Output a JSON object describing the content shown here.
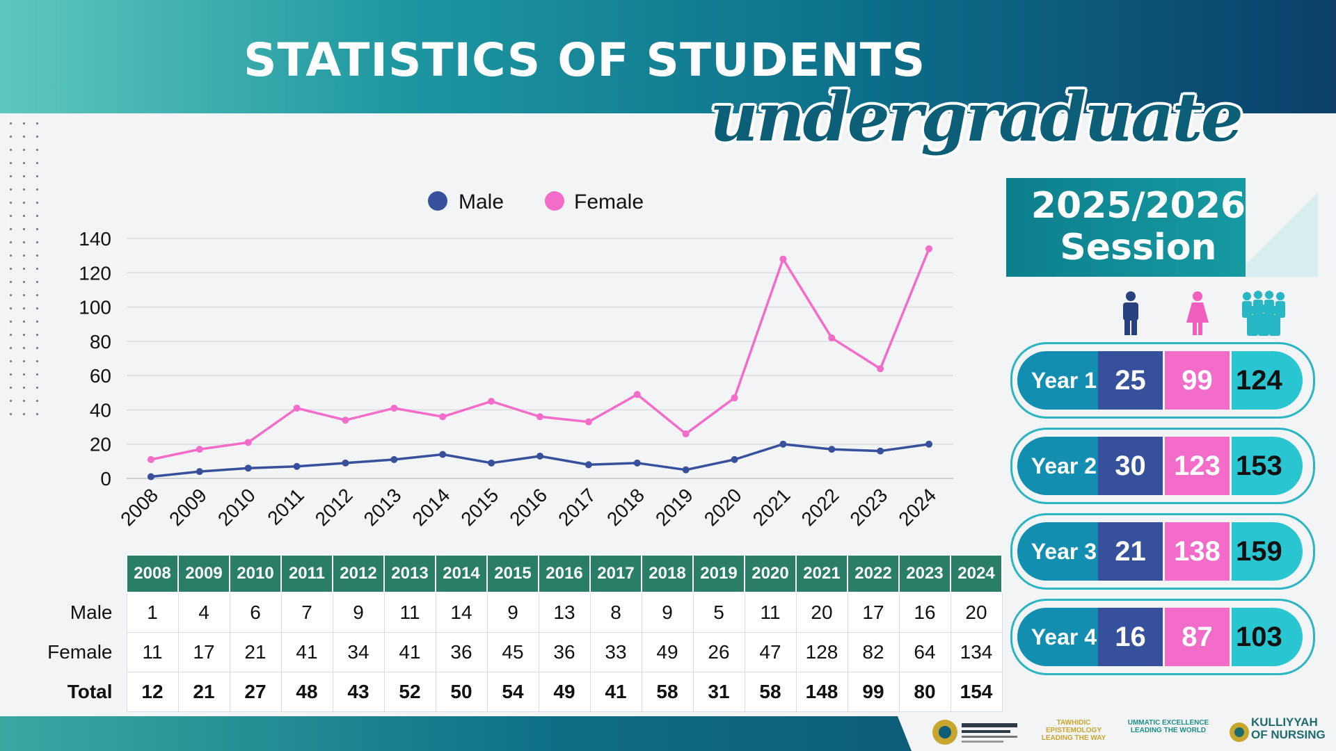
{
  "header": {
    "title": "STATISTICS OF STUDENTS",
    "subtitle": "undergraduate"
  },
  "colors": {
    "male": "#36509c",
    "female": "#f36cc9",
    "total": "#29c5d1",
    "table_header": "#2a7e68",
    "header_band": "#0c6f8a"
  },
  "chart_data": {
    "type": "line",
    "x": [
      "2008",
      "2009",
      "2010",
      "2011",
      "2012",
      "2013",
      "2014",
      "2015",
      "2016",
      "2017",
      "2018",
      "2019",
      "2020",
      "2021",
      "2022",
      "2023",
      "2024"
    ],
    "series": [
      {
        "name": "Male",
        "values": [
          1,
          4,
          6,
          7,
          9,
          11,
          14,
          9,
          13,
          8,
          9,
          5,
          11,
          20,
          17,
          16,
          20
        ]
      },
      {
        "name": "Female",
        "values": [
          11,
          17,
          21,
          41,
          34,
          41,
          36,
          45,
          36,
          33,
          49,
          26,
          47,
          128,
          82,
          64,
          134
        ]
      }
    ],
    "ylim": [
      0,
      140
    ],
    "yticks": [
      0,
      20,
      40,
      60,
      80,
      100,
      120,
      140
    ],
    "grid": true,
    "legend": "top-center"
  },
  "table": {
    "years": [
      "2008",
      "2009",
      "2010",
      "2011",
      "2012",
      "2013",
      "2014",
      "2015",
      "2016",
      "2017",
      "2018",
      "2019",
      "2020",
      "2021",
      "2022",
      "2023",
      "2024"
    ],
    "rows": [
      {
        "label": "Male",
        "values": [
          "1",
          "4",
          "6",
          "7",
          "9",
          "11",
          "14",
          "9",
          "13",
          "8",
          "9",
          "5",
          "11",
          "20",
          "17",
          "16",
          "20"
        ]
      },
      {
        "label": "Female",
        "values": [
          "11",
          "17",
          "21",
          "41",
          "34",
          "41",
          "36",
          "45",
          "36",
          "33",
          "49",
          "26",
          "47",
          "128",
          "82",
          "64",
          "134"
        ]
      },
      {
        "label": "Total",
        "values": [
          "12",
          "21",
          "27",
          "48",
          "43",
          "52",
          "50",
          "54",
          "49",
          "41",
          "58",
          "31",
          "58",
          "148",
          "99",
          "80",
          "154"
        ]
      }
    ]
  },
  "session": {
    "line1": "2025/2026",
    "line2": "Session",
    "icons": [
      "male-icon",
      "female-icon",
      "group-icon"
    ],
    "rows": [
      {
        "label": "Year 1",
        "male": "25",
        "female": "99",
        "total": "124"
      },
      {
        "label": "Year 2",
        "male": "30",
        "female": "123",
        "total": "153"
      },
      {
        "label": "Year 3",
        "male": "21",
        "female": "138",
        "total": "159"
      },
      {
        "label": "Year 4",
        "male": "16",
        "female": "87",
        "total": "103"
      }
    ]
  },
  "footer": {
    "tagline1": [
      "TAWHIDIC EPISTEMOLOGY",
      "LEADING THE WAY"
    ],
    "tagline2": [
      "UMMATIC EXCELLENCE",
      "LEADING THE WORLD"
    ],
    "brand": [
      "KULLIYYAH",
      "OF NURSING"
    ]
  }
}
